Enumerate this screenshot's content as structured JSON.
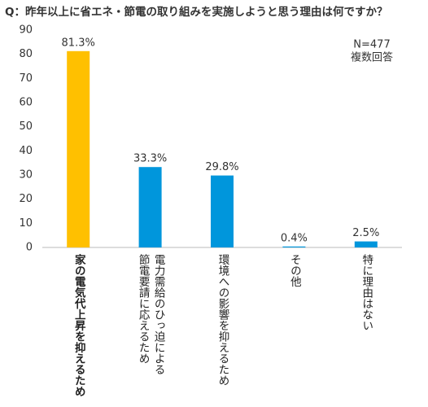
{
  "chart_data": {
    "type": "bar",
    "title": "Q：昨年以上に省エネ・節電の取り組みを実施しようと思う理由は何ですか？",
    "categories": [
      "家の電気代上昇を抑えるため",
      "電力需給のひっ迫による\n節電要請に応えるため",
      "環境への影響を抑えるため",
      "その他",
      "特に理由はない"
    ],
    "values": [
      81.3,
      33.3,
      29.8,
      0.4,
      2.5
    ],
    "value_labels": [
      "81.3%",
      "33.3%",
      "29.8%",
      "0.4%",
      "2.5%"
    ],
    "colors": [
      "#FFC000",
      "#0096DC",
      "#0096DC",
      "#0096DC",
      "#0096DC"
    ],
    "ylim": [
      0,
      90
    ],
    "yticks": [
      0,
      10,
      20,
      30,
      40,
      50,
      60,
      70,
      80,
      90
    ],
    "grid": false,
    "annotations": [
      "N=477",
      "複数回答"
    ]
  }
}
